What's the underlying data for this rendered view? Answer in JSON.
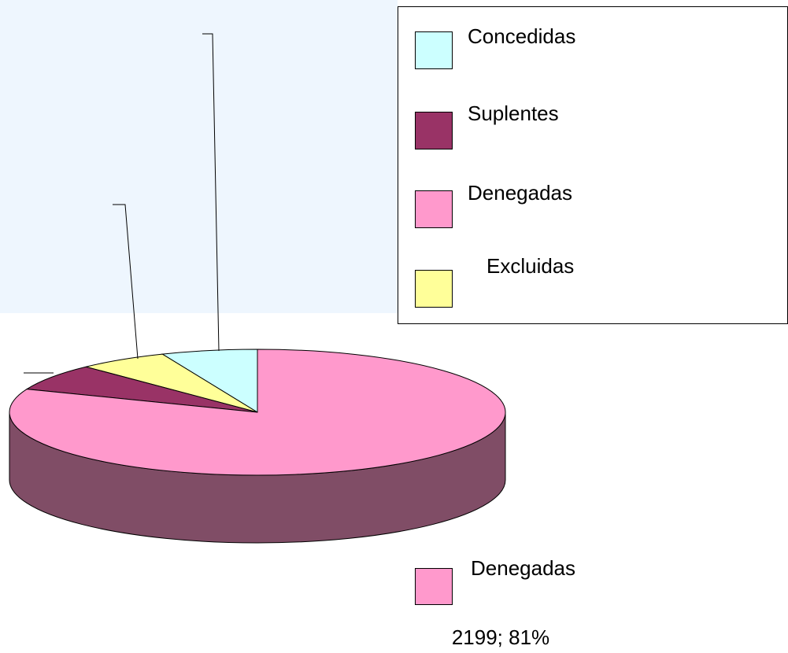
{
  "chart_data": {
    "type": "pie3d",
    "categories": [
      "Concedidas",
      "Suplentes",
      "Denegadas",
      "Excluidas"
    ],
    "values": [
      170,
      186,
      2199,
      160
    ],
    "value_labels": [
      null,
      null,
      "2199; 81%",
      null
    ],
    "colors": [
      "#ccffff",
      "#993366",
      "#ff99cc",
      "#ffff99"
    ],
    "legend": "top-right"
  }
}
